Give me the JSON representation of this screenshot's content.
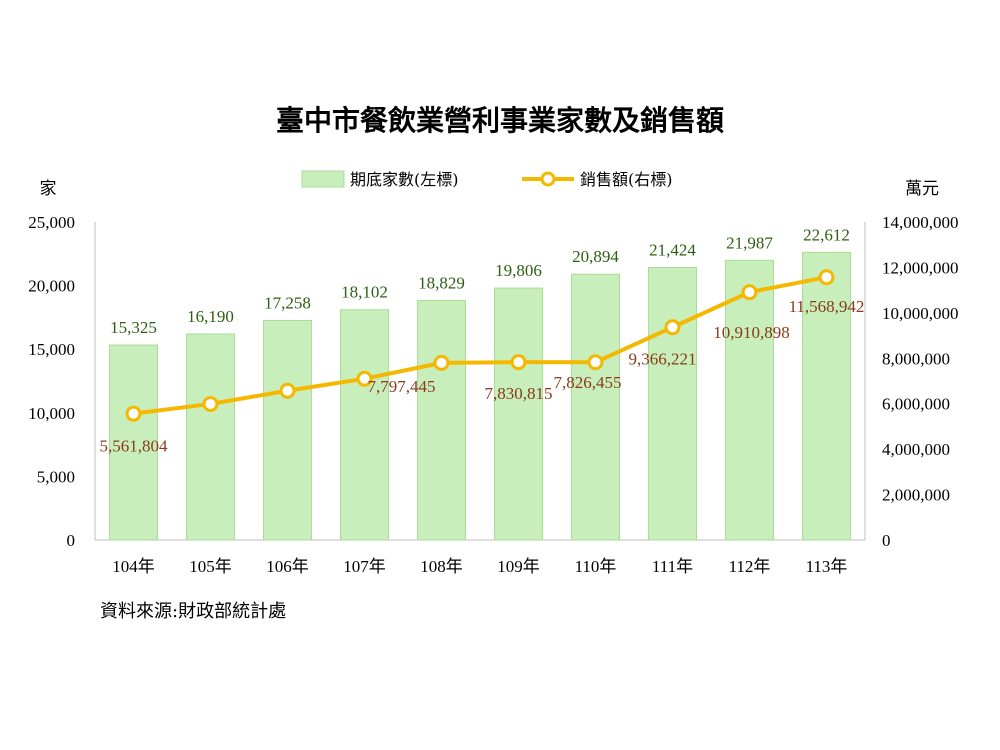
{
  "chart_data": {
    "type": "bar+line",
    "title": "臺中市餐飲業營利事業家數及銷售額",
    "left_unit": "家",
    "right_unit": "萬元",
    "categories": [
      "104年",
      "105年",
      "106年",
      "107年",
      "108年",
      "109年",
      "110年",
      "111年",
      "112年",
      "113年"
    ],
    "series": [
      {
        "name": "期底家數(左標)",
        "type": "bar",
        "axis": "left",
        "values": [
          15325,
          16190,
          17258,
          18102,
          18829,
          19806,
          20894,
          21424,
          21987,
          22612
        ],
        "labels": [
          "15,325",
          "16,190",
          "17,258",
          "18,102",
          "18,829",
          "19,806",
          "20,894",
          "21,424",
          "21,987",
          "22,612"
        ]
      },
      {
        "name": "銷售額(右標)",
        "type": "line",
        "axis": "right",
        "values": [
          5561804,
          5990000,
          6570000,
          7100000,
          7797445,
          7830815,
          7826455,
          9366221,
          10910898,
          11568942
        ],
        "labels": [
          "5,561,804",
          "",
          "",
          "",
          "7,797,445",
          "7,830,815",
          "7,826,455",
          "9,366,221",
          "10,910,898",
          "11,568,942"
        ]
      }
    ],
    "left_axis": {
      "min": 0,
      "max": 25000,
      "ticks": [
        "0",
        "5,000",
        "10,000",
        "15,000",
        "20,000",
        "25,000"
      ]
    },
    "right_axis": {
      "min": 0,
      "max": 14000000,
      "ticks": [
        "0",
        "2,000,000",
        "4,000,000",
        "6,000,000",
        "8,000,000",
        "10,000,000",
        "12,000,000",
        "14,000,000"
      ]
    },
    "legend_position": "top",
    "grid": false,
    "colors": {
      "bar_fill": "#c8eebb",
      "bar_stroke": "#a9dc97",
      "line": "#f5b800",
      "marker_fill": "#ffffff",
      "bar_label": "#2e5e12",
      "line_label": "#8b3a1a",
      "axis": "#bfbfbf"
    },
    "source": "資料來源:財政部統計處"
  }
}
